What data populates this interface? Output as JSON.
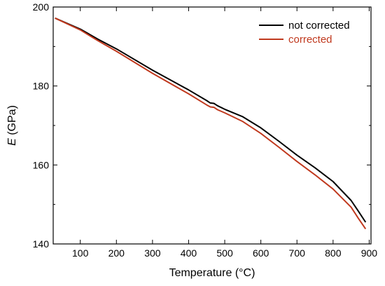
{
  "chart_data": {
    "type": "line",
    "xlabel": "Temperature (°C)",
    "ylabel_var": "E",
    "ylabel_unit": " (GPa)",
    "xlim": [
      25,
      905
    ],
    "ylim": [
      140,
      200
    ],
    "xticks": [
      100,
      200,
      300,
      400,
      500,
      600,
      700,
      800,
      900
    ],
    "yticks": [
      140,
      160,
      180,
      200
    ],
    "legend_position": "top-right",
    "grid": false,
    "series": [
      {
        "name": "not corrected",
        "color": "#000000",
        "points": [
          [
            30,
            197.2
          ],
          [
            100,
            194.4
          ],
          [
            150,
            191.8
          ],
          [
            200,
            189.4
          ],
          [
            300,
            184.0
          ],
          [
            400,
            179.0
          ],
          [
            450,
            176.3
          ],
          [
            460,
            175.7
          ],
          [
            470,
            175.6
          ],
          [
            480,
            175.0
          ],
          [
            500,
            174.1
          ],
          [
            550,
            172.2
          ],
          [
            600,
            169.4
          ],
          [
            650,
            166.0
          ],
          [
            700,
            162.5
          ],
          [
            750,
            159.3
          ],
          [
            800,
            155.8
          ],
          [
            850,
            151.0
          ],
          [
            870,
            148.3
          ],
          [
            890,
            145.5
          ]
        ]
      },
      {
        "name": "corrected",
        "color": "#c0391e",
        "points": [
          [
            30,
            197.2
          ],
          [
            100,
            194.2
          ],
          [
            150,
            191.4
          ],
          [
            200,
            188.8
          ],
          [
            300,
            183.2
          ],
          [
            400,
            178.0
          ],
          [
            450,
            175.2
          ],
          [
            460,
            174.7
          ],
          [
            470,
            174.6
          ],
          [
            480,
            174.0
          ],
          [
            500,
            173.2
          ],
          [
            550,
            171.0
          ],
          [
            600,
            168.0
          ],
          [
            650,
            164.5
          ],
          [
            700,
            160.9
          ],
          [
            750,
            157.5
          ],
          [
            800,
            153.9
          ],
          [
            850,
            149.3
          ],
          [
            870,
            146.5
          ],
          [
            890,
            143.8
          ]
        ]
      }
    ]
  }
}
